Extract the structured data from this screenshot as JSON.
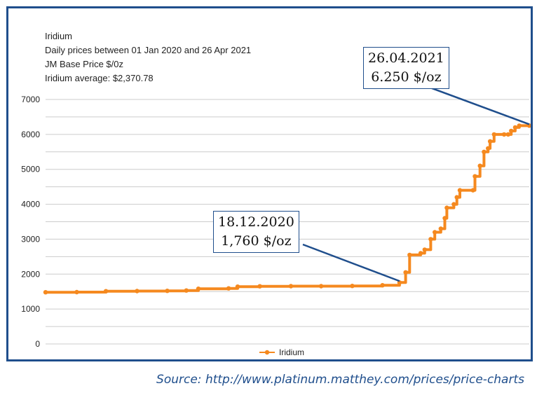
{
  "header": {
    "line1": "Iridium",
    "line2": "Daily prices between 01 Jan 2020 and 26 Apr 2021",
    "line3": "JM Base Price $/0z",
    "line4": "Iridium average: $2,370.78"
  },
  "callouts": {
    "dec": {
      "date": "18.12.2020",
      "price": "1,760 $/oz"
    },
    "apr": {
      "date": "26.04.2021",
      "price": "6.250 $/oz"
    }
  },
  "source": "Source: http://www.platinum.matthey.com/prices/price-charts",
  "colors": {
    "series": "#f5891f",
    "frame": "#1f4e8c",
    "grid": "#cccccc"
  },
  "chart_data": {
    "type": "line",
    "title": "Iridium",
    "x_range": [
      "2020-01-01",
      "2021-04-26"
    ],
    "ylim": [
      0,
      7000
    ],
    "yticks": [
      0,
      1000,
      2000,
      3000,
      4000,
      5000,
      6000,
      7000
    ],
    "grid": true,
    "legend": "bottom",
    "series": [
      {
        "name": "Iridium",
        "color": "#f5891f",
        "points": [
          [
            "2020-01-01",
            1480
          ],
          [
            "2020-02-01",
            1485
          ],
          [
            "2020-03-01",
            1510
          ],
          [
            "2020-04-01",
            1515
          ],
          [
            "2020-05-01",
            1520
          ],
          [
            "2020-05-20",
            1530
          ],
          [
            "2020-06-01",
            1580
          ],
          [
            "2020-07-01",
            1590
          ],
          [
            "2020-07-10",
            1640
          ],
          [
            "2020-08-01",
            1650
          ],
          [
            "2020-09-01",
            1655
          ],
          [
            "2020-10-01",
            1655
          ],
          [
            "2020-11-01",
            1660
          ],
          [
            "2020-12-01",
            1680
          ],
          [
            "2020-12-18",
            1760
          ],
          [
            "2020-12-24",
            2050
          ],
          [
            "2020-12-28",
            2550
          ],
          [
            "2021-01-08",
            2600
          ],
          [
            "2021-01-12",
            2700
          ],
          [
            "2021-01-18",
            3000
          ],
          [
            "2021-01-22",
            3200
          ],
          [
            "2021-01-28",
            3300
          ],
          [
            "2021-02-01",
            3600
          ],
          [
            "2021-02-03",
            3900
          ],
          [
            "2021-02-10",
            4000
          ],
          [
            "2021-02-13",
            4200
          ],
          [
            "2021-02-16",
            4400
          ],
          [
            "2021-03-01",
            4400
          ],
          [
            "2021-03-03",
            4800
          ],
          [
            "2021-03-08",
            5100
          ],
          [
            "2021-03-12",
            5500
          ],
          [
            "2021-03-16",
            5600
          ],
          [
            "2021-03-18",
            5800
          ],
          [
            "2021-03-22",
            6000
          ],
          [
            "2021-04-01",
            6000
          ],
          [
            "2021-04-05",
            6000
          ],
          [
            "2021-04-08",
            6100
          ],
          [
            "2021-04-12",
            6200
          ],
          [
            "2021-04-16",
            6250
          ],
          [
            "2021-04-26",
            6250
          ]
        ]
      }
    ]
  }
}
